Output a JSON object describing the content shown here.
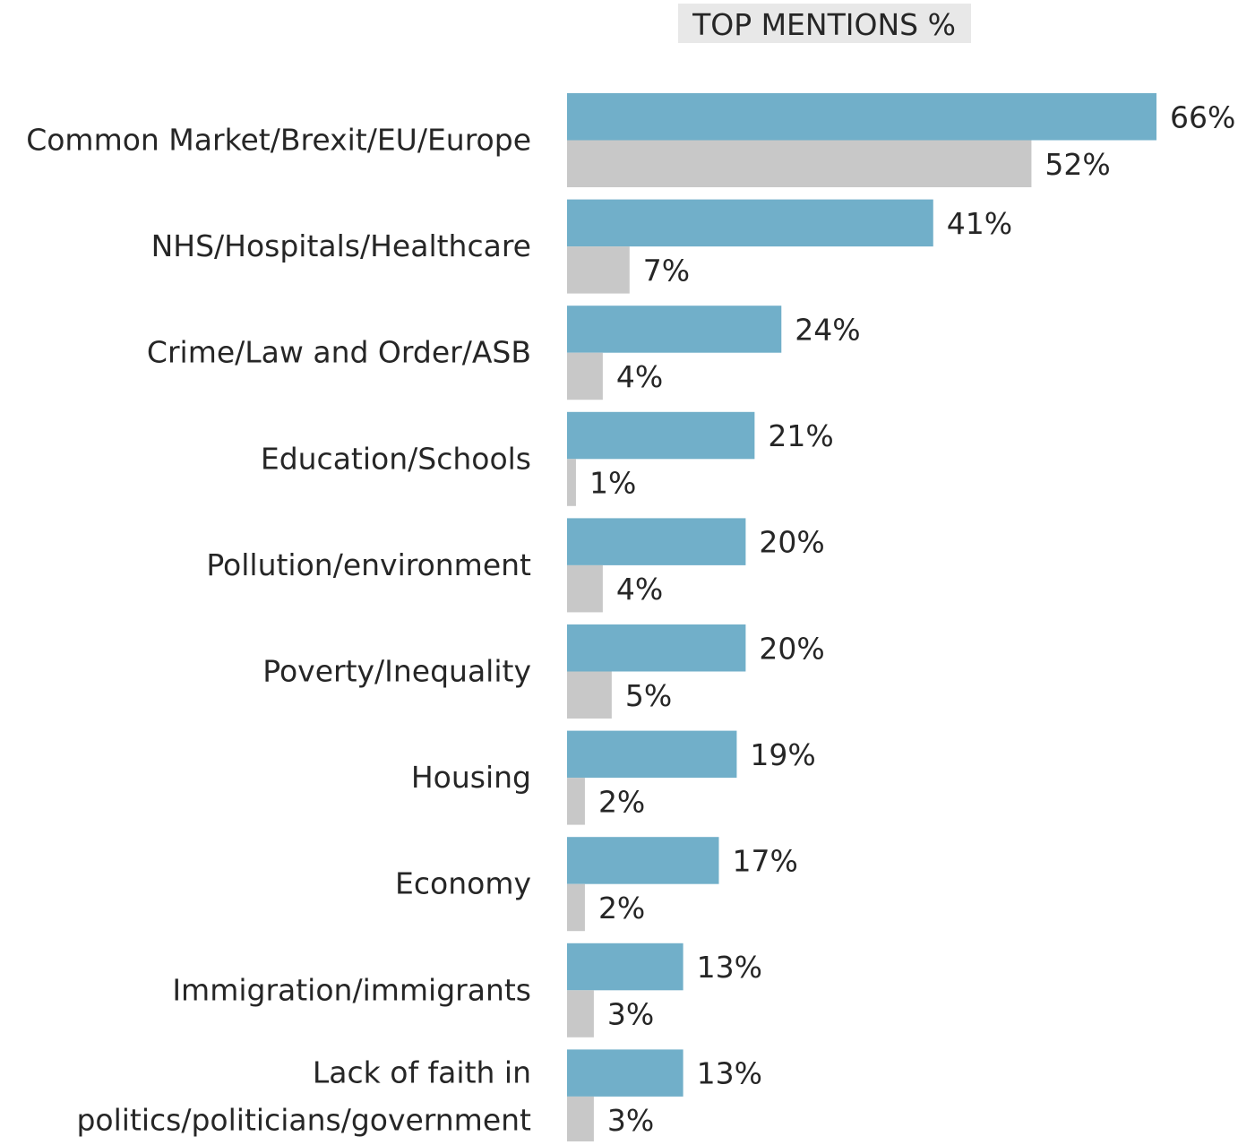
{
  "chart_data": {
    "type": "bar",
    "orientation": "horizontal",
    "title": "TOP MENTIONS %",
    "xlabel": "",
    "ylabel": "",
    "xlim": [
      0,
      66
    ],
    "grid": false,
    "legend": "none",
    "categories": [
      [
        "Common Market/Brexit/EU/Europe"
      ],
      [
        "NHS/Hospitals/Healthcare"
      ],
      [
        "Crime/Law and Order/ASB"
      ],
      [
        "Education/Schools"
      ],
      [
        "Pollution/environment"
      ],
      [
        "Poverty/Inequality"
      ],
      [
        "Housing"
      ],
      [
        "Economy"
      ],
      [
        "Immigration/immigrants"
      ],
      [
        "Lack of faith in",
        "politics/politicians/government"
      ]
    ],
    "series": [
      {
        "color": "#71afc9",
        "values": [
          66,
          41,
          24,
          21,
          20,
          20,
          19,
          17,
          13,
          13
        ],
        "labels": [
          "66%",
          "41%",
          "24%",
          "21%",
          "20%",
          "20%",
          "19%",
          "17%",
          "13%",
          "13%"
        ]
      },
      {
        "color": "#c8c8c8",
        "values": [
          52,
          7,
          4,
          1,
          4,
          5,
          2,
          2,
          3,
          3
        ],
        "labels": [
          "52%",
          "7%",
          "4%",
          "1%",
          "4%",
          "5%",
          "2%",
          "2%",
          "3%",
          "3%"
        ]
      }
    ],
    "colors": {
      "title_background": "#e8e8e8",
      "text": "#262626"
    }
  }
}
